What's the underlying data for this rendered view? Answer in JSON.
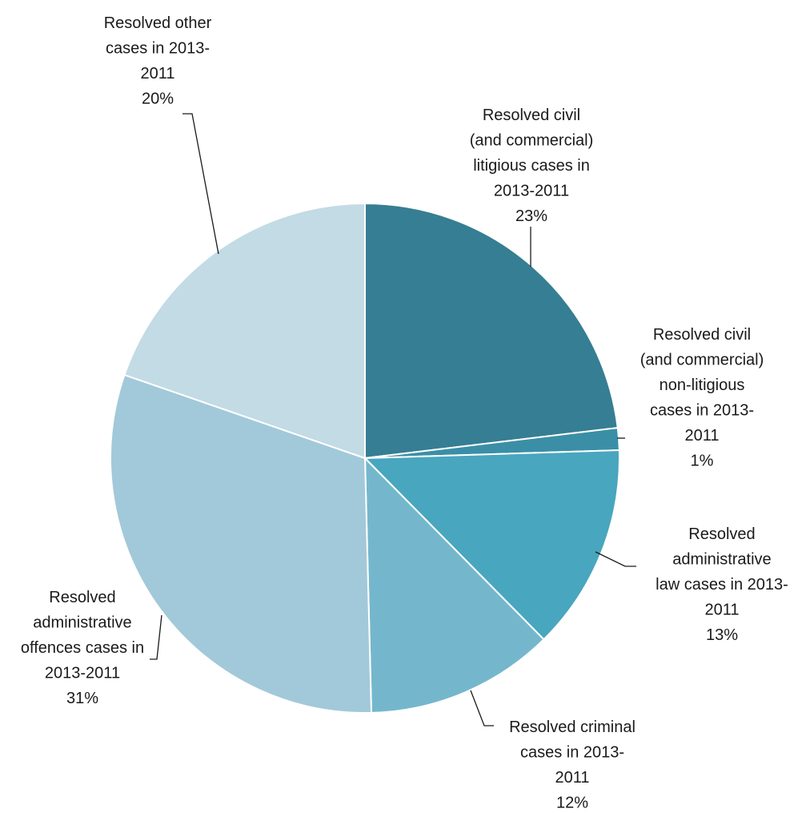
{
  "chart_data": {
    "type": "pie",
    "title": "",
    "start": "12 o'clock",
    "direction": "clockwise",
    "slices": [
      {
        "label": [
          "Resolved civil",
          "(and commercial)",
          "litigious cases in",
          "2013-2011"
        ],
        "pct_label": "23%",
        "value": 23.1,
        "color": "#367E93"
      },
      {
        "label": [
          "Resolved civil",
          "(and commercial)",
          "non-litigious",
          "cases in 2013-",
          "2011"
        ],
        "pct_label": "1%",
        "value": 1.4,
        "color": "#3A8FA7"
      },
      {
        "label": [
          "Resolved",
          "administrative",
          "law cases in 2013-",
          "2011"
        ],
        "pct_label": "13%",
        "value": 13.1,
        "color": "#48A6BE"
      },
      {
        "label": [
          "Resolved criminal",
          "cases in 2013-",
          "2011"
        ],
        "pct_label": "12%",
        "value": 12.0,
        "color": "#74B7CD"
      },
      {
        "label": [
          "Resolved",
          "administrative",
          "offences cases in",
          "2013-2011"
        ],
        "pct_label": "31%",
        "value": 30.7,
        "color": "#A2C9D9"
      },
      {
        "label": [
          "Resolved other",
          "cases in 2013-",
          "2011"
        ],
        "pct_label": "20%",
        "value": 19.7,
        "color": "#C2DBE5"
      }
    ]
  }
}
